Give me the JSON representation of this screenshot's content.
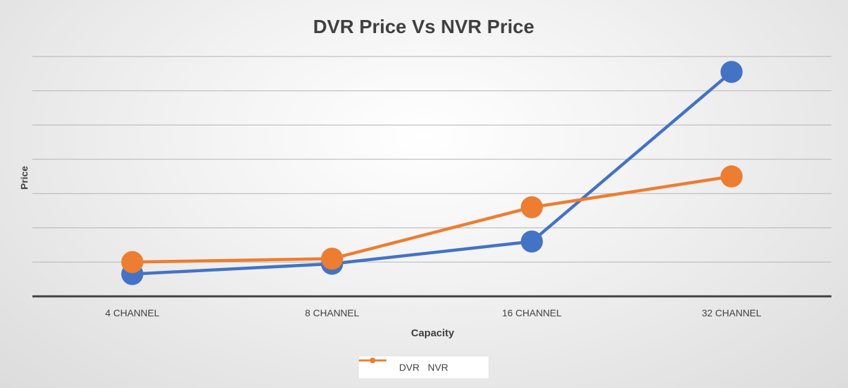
{
  "chart_data": {
    "type": "line",
    "title": "DVR Price Vs NVR Price",
    "xlabel": "Capacity",
    "ylabel": "Price",
    "categories": [
      "4 CHANNEL",
      "8 CHANNEL",
      "16 CHANNEL",
      "32 CHANNEL"
    ],
    "series": [
      {
        "name": "DVR",
        "color": "#4472C4",
        "values": [
          0.65,
          0.95,
          1.6,
          6.55
        ]
      },
      {
        "name": "NVR",
        "color": "#ED7D31",
        "values": [
          1.0,
          1.1,
          2.6,
          3.5
        ]
      }
    ],
    "ylim": [
      0,
      7
    ],
    "y_tick_labels_shown": false,
    "grid": true,
    "legend": "bottom"
  }
}
